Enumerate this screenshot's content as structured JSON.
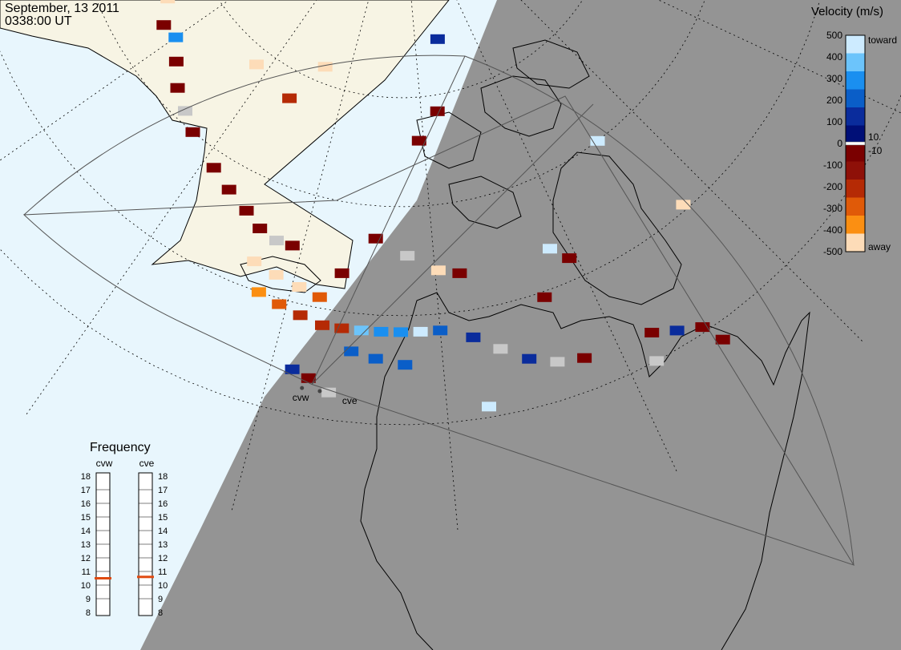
{
  "header": {
    "date": "September, 13 2011",
    "time": "0338:00 UT"
  },
  "colors": {
    "ocean": "#e8f6fd",
    "land": "#f7f4e4",
    "night": "#949494",
    "coast": "#000000"
  },
  "legend": {
    "title": "Velocity (m/s)",
    "ticks": [
      "500",
      "400",
      "300",
      "200",
      "100",
      "0",
      "-100",
      "-200",
      "-300",
      "-400",
      "-500"
    ],
    "toward_label": "toward",
    "away_label": "away",
    "zero_pos": "10",
    "zero_neg": "-10",
    "scale": [
      {
        "v": 500,
        "c": "#cdebff"
      },
      {
        "v": 400,
        "c": "#6cc4fb"
      },
      {
        "v": 300,
        "c": "#1a8ff0"
      },
      {
        "v": 200,
        "c": "#0a5ec8"
      },
      {
        "v": 100,
        "c": "#0a2c9c"
      },
      {
        "v": 10,
        "c": "#000f77"
      },
      {
        "v": -10,
        "c": "#7a0000"
      },
      {
        "v": -100,
        "c": "#8e1008"
      },
      {
        "v": -200,
        "c": "#b52a05"
      },
      {
        "v": -300,
        "c": "#e05a08"
      },
      {
        "v": -400,
        "c": "#fb8f12"
      },
      {
        "v": -500,
        "c": "#fddcb8"
      }
    ]
  },
  "frequency": {
    "title": "Frequency",
    "radars": [
      {
        "name": "cvw",
        "freq_mhz": 10.5
      },
      {
        "name": "cve",
        "freq_mhz": 10.6
      }
    ],
    "scale_labels": [
      "18",
      "17",
      "16",
      "15",
      "14",
      "13",
      "12",
      "11",
      "10",
      "9",
      "8"
    ],
    "marker_color": "#e04a10"
  },
  "sites": [
    {
      "name": "cvw"
    },
    {
      "name": "cve"
    }
  ],
  "velocity_cells": [
    {
      "lon": -168.0,
      "lat": 66.0,
      "v": -500
    },
    {
      "lon": -163.5,
      "lat": 64.5,
      "v": -10
    },
    {
      "lon": -160.0,
      "lat": 64.8,
      "v": 300
    },
    {
      "lon": -156.0,
      "lat": 63.5,
      "v": -10
    },
    {
      "lon": -152.0,
      "lat": 62.0,
      "v": -10
    },
    {
      "lon": -148.0,
      "lat": 61.0,
      "v": 0
    },
    {
      "lon": -144.5,
      "lat": 60.0,
      "v": -10
    },
    {
      "lon": -138.0,
      "lat": 58.5,
      "v": -10
    },
    {
      "lon": -134.0,
      "lat": 57.5,
      "v": -10
    },
    {
      "lon": -130.0,
      "lat": 56.5,
      "v": -10
    },
    {
      "lon": -127.0,
      "lat": 55.5,
      "v": -10
    },
    {
      "lon": -124.0,
      "lat": 55.0,
      "v": 0
    },
    {
      "lon": -121.5,
      "lat": 55.0,
      "v": -10
    },
    {
      "lon": -126.0,
      "lat": 52.5,
      "v": -500
    },
    {
      "lon": -122.5,
      "lat": 52.0,
      "v": -500
    },
    {
      "lon": -119.0,
      "lat": 51.5,
      "v": -500
    },
    {
      "lon": -116.0,
      "lat": 51.0,
      "v": -300
    },
    {
      "lon": -124.0,
      "lat": 50.0,
      "v": -400
    },
    {
      "lon": -121.0,
      "lat": 49.5,
      "v": -300
    },
    {
      "lon": -118.0,
      "lat": 49.0,
      "v": -200
    },
    {
      "lon": -115.0,
      "lat": 48.5,
      "v": -200
    },
    {
      "lon": -112.5,
      "lat": 48.5,
      "v": -200
    },
    {
      "lon": -110.0,
      "lat": 48.5,
      "v": 400
    },
    {
      "lon": -107.5,
      "lat": 48.5,
      "v": 300
    },
    {
      "lon": -105.0,
      "lat": 48.5,
      "v": 300
    },
    {
      "lon": -102.5,
      "lat": 48.5,
      "v": 500
    },
    {
      "lon": -100.0,
      "lat": 48.5,
      "v": 200
    },
    {
      "lon": -111.0,
      "lat": 46.5,
      "v": 200
    },
    {
      "lon": -108.0,
      "lat": 46.0,
      "v": 200
    },
    {
      "lon": -104.5,
      "lat": 45.5,
      "v": 200
    },
    {
      "lon": -96.0,
      "lat": 47.5,
      "v": 100
    },
    {
      "lon": -93.0,
      "lat": 46.0,
      "v": 0
    },
    {
      "lon": -90.0,
      "lat": 44.5,
      "v": 100
    },
    {
      "lon": -87.0,
      "lat": 43.5,
      "v": 0
    },
    {
      "lon": -84.0,
      "lat": 43.0,
      "v": -10
    },
    {
      "lon": -76.0,
      "lat": 42.5,
      "v": -10
    },
    {
      "lon": -73.5,
      "lat": 41.5,
      "v": 100
    },
    {
      "lon": -71.0,
      "lat": 40.5,
      "v": -10
    },
    {
      "lon": -70.0,
      "lat": 38.5,
      "v": -10
    },
    {
      "lon": -77.0,
      "lat": 40.0,
      "v": 0
    },
    {
      "lon": -81.0,
      "lat": 52.0,
      "v": -10
    },
    {
      "lon": -83.0,
      "lat": 53.5,
      "v": 500
    },
    {
      "lon": -64.0,
      "lat": 50.5,
      "v": -500
    },
    {
      "lon": -68.0,
      "lat": 60.0,
      "v": 500
    },
    {
      "lon": -92.0,
      "lat": 75.0,
      "v": 100
    },
    {
      "lon": -96.0,
      "lat": 68.5,
      "v": -10
    },
    {
      "lon": -101.0,
      "lat": 66.0,
      "v": -10
    },
    {
      "lon": -143.0,
      "lat": 68.5,
      "v": -500
    },
    {
      "lon": -132.0,
      "lat": 67.5,
      "v": -200
    },
    {
      "lon": -127.0,
      "lat": 71.5,
      "v": -500
    },
    {
      "lon": -109.0,
      "lat": 57.0,
      "v": -10
    },
    {
      "lon": -104.0,
      "lat": 55.5,
      "v": 0
    },
    {
      "lon": -99.5,
      "lat": 54.0,
      "v": -500
    },
    {
      "lon": -96.5,
      "lat": 53.5,
      "v": -10
    },
    {
      "lon": -113.5,
      "lat": 53.5,
      "v": -10
    },
    {
      "lon": -86.0,
      "lat": 49.5,
      "v": -10
    },
    {
      "lon": -117.5,
      "lat": 44.0,
      "v": 100
    },
    {
      "lon": -115.5,
      "lat": 43.5,
      "v": -10
    },
    {
      "lon": -113.0,
      "lat": 42.5,
      "v": 0
    },
    {
      "lon": -95.5,
      "lat": 41.0,
      "v": 500
    }
  ]
}
